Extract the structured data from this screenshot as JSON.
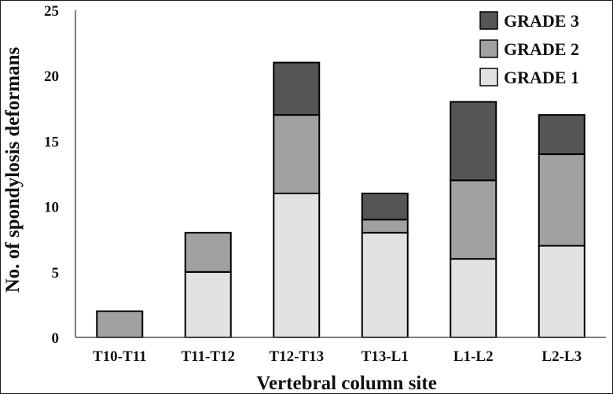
{
  "chart_data": {
    "type": "bar",
    "stacked": true,
    "categories": [
      "T10-T11",
      "T11-T12",
      "T12-T13",
      "T13-L1",
      "L1-L2",
      "L2-L3"
    ],
    "series": [
      {
        "name": "GRADE 1",
        "color": "#e2e2e2",
        "values": [
          0,
          5,
          11,
          8,
          6,
          7
        ]
      },
      {
        "name": "GRADE 2",
        "color": "#a1a1a1",
        "values": [
          2,
          3,
          6,
          1,
          6,
          7
        ]
      },
      {
        "name": "GRADE 3",
        "color": "#555555",
        "values": [
          0,
          0,
          4,
          2,
          6,
          3
        ]
      }
    ],
    "legend_order": [
      "GRADE 3",
      "GRADE 2",
      "GRADE 1"
    ],
    "legend_position": "top-right",
    "xlabel": "Vertebral column site",
    "ylabel": "No. of spondylosis deformans",
    "ylim": [
      0,
      25
    ],
    "yticks": [
      0,
      5,
      10,
      15,
      20,
      25
    ],
    "grid": false
  }
}
